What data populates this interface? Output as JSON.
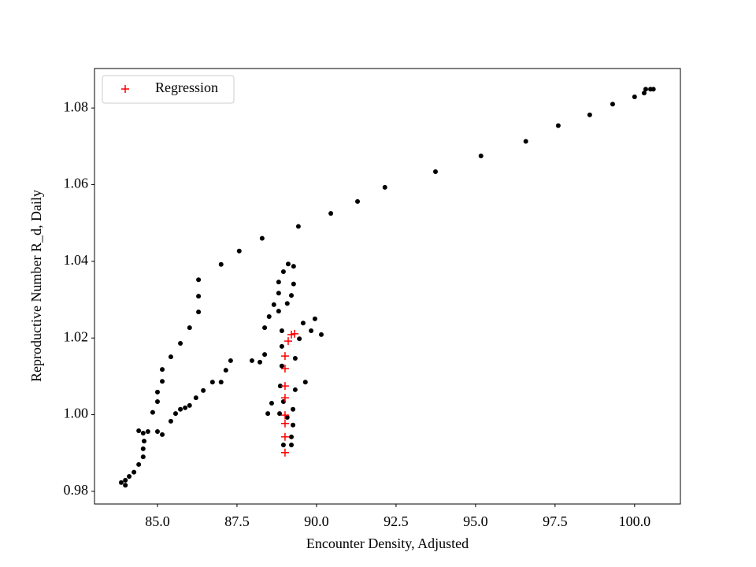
{
  "chart_data": {
    "type": "scatter",
    "x_label": "Encounter Density, Adjusted",
    "y_label": "Reproductive Number R_d, Daily",
    "xlim": [
      83.02,
      101.44
    ],
    "ylim": [
      0.9767,
      1.0903
    ],
    "xticks": [
      {
        "value": 85,
        "label": "85.0"
      },
      {
        "value": 87.5,
        "label": "87.5"
      },
      {
        "value": 90,
        "label": "90.0"
      },
      {
        "value": 92.5,
        "label": "92.5"
      },
      {
        "value": 95,
        "label": "95.0"
      },
      {
        "value": 97.5,
        "label": "97.5"
      },
      {
        "value": 100,
        "label": "100.0"
      }
    ],
    "yticks": [
      {
        "value": 0.98,
        "label": "0.98"
      },
      {
        "value": 1.0,
        "label": "1.00"
      },
      {
        "value": 1.02,
        "label": "1.02"
      },
      {
        "value": 1.04,
        "label": "1.04"
      },
      {
        "value": 1.06,
        "label": "1.06"
      },
      {
        "value": 1.08,
        "label": "1.08"
      }
    ],
    "legend": "upper left",
    "series": [
      {
        "color": "#000000",
        "marker": "o",
        "x": [
          100.59,
          100.5,
          100.35,
          100.3,
          100.0,
          99.31,
          98.59,
          97.6,
          96.58,
          95.17,
          93.74,
          92.15,
          91.29,
          90.45,
          89.43,
          88.29,
          87.57,
          87.0,
          86.29,
          86.29,
          86.29,
          86.01,
          85.72,
          85.42,
          85.15,
          85.15,
          85.0,
          85.0,
          84.85,
          84.55,
          84.55,
          84.55,
          84.41,
          84.26,
          84.11,
          83.99,
          83.99,
          83.86,
          84.58,
          84.41,
          84.7,
          85.0,
          85.15,
          85.42,
          85.57,
          85.72,
          85.87,
          86.01,
          86.21,
          86.44,
          86.73,
          87.0,
          87.15,
          87.3,
          87.97,
          88.22,
          88.37,
          88.37,
          88.51,
          88.66,
          88.81,
          88.81,
          88.81,
          88.96,
          89.11,
          89.28,
          89.28,
          89.21,
          89.08,
          88.91,
          88.91,
          88.91,
          88.86,
          88.96,
          88.59,
          88.47,
          88.84,
          89.08,
          89.26,
          89.26,
          89.21,
          88.96,
          89.21,
          89.33,
          89.46,
          89.58,
          89.95,
          90.15,
          89.83,
          89.65,
          89.33
        ],
        "values": [
          1.0849,
          1.0849,
          1.0849,
          1.0839,
          1.0829,
          1.081,
          1.0782,
          1.0754,
          1.0713,
          1.0675,
          1.0634,
          1.0593,
          1.0556,
          1.0525,
          1.0491,
          1.046,
          1.0427,
          1.0392,
          1.0352,
          1.0309,
          1.0268,
          1.0227,
          1.0186,
          1.0151,
          1.0118,
          1.0087,
          1.0059,
          1.0034,
          1.0006,
          0.9952,
          0.9911,
          0.989,
          0.987,
          0.985,
          0.9839,
          0.9829,
          0.9816,
          0.9823,
          0.9931,
          0.9958,
          0.9956,
          0.9956,
          0.9948,
          0.9983,
          1.0003,
          1.0014,
          1.0018,
          1.0024,
          1.0044,
          1.0063,
          1.0085,
          1.0085,
          1.0116,
          1.0141,
          1.0141,
          1.0137,
          1.0157,
          1.0227,
          1.0256,
          1.0287,
          1.027,
          1.0317,
          1.0346,
          1.0373,
          1.0393,
          1.0387,
          1.0341,
          1.0311,
          1.029,
          1.0219,
          1.0178,
          1.0127,
          1.0075,
          1.0034,
          1.003,
          1.0003,
          1.0003,
          0.9993,
          1.0014,
          0.9973,
          0.9942,
          0.9921,
          0.9921,
          1.0147,
          1.0198,
          1.0239,
          1.025,
          1.0209,
          1.0219,
          1.0085,
          1.0065
        ]
      },
      {
        "name": "Regression",
        "color": "#ff0000",
        "marker": "+",
        "x": [
          89.01,
          89.01,
          89.01,
          89.01,
          89.01,
          89.01,
          89.01,
          89.01,
          89.11,
          89.21,
          89.31
        ],
        "values": [
          0.9901,
          0.9942,
          0.9977,
          0.9999,
          1.0044,
          1.0075,
          1.012,
          1.0153,
          1.0192,
          1.0209,
          1.0211
        ]
      }
    ]
  }
}
